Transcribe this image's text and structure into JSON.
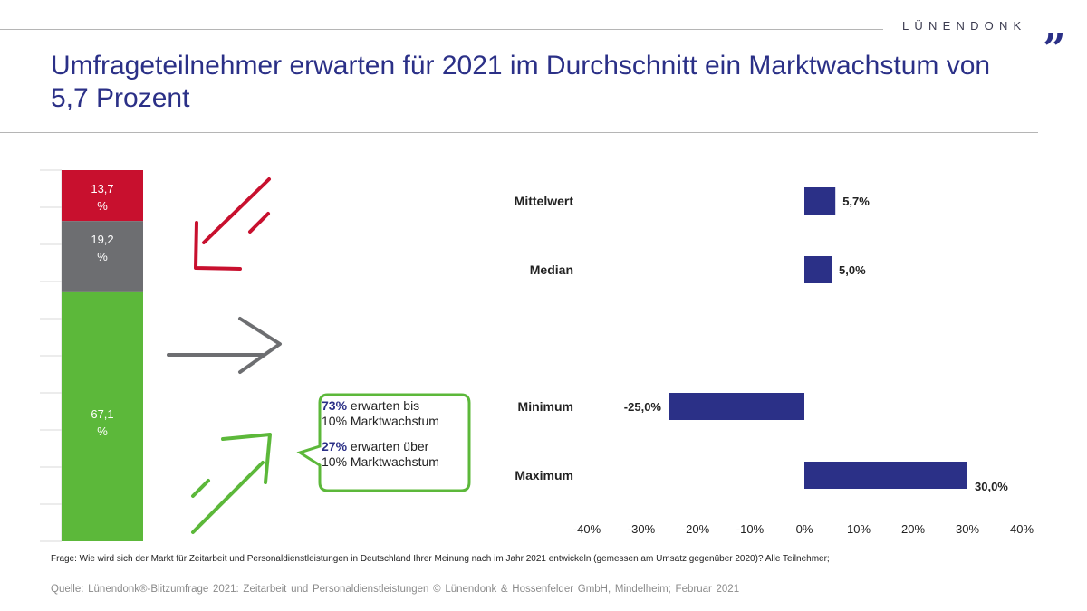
{
  "brand": {
    "name": "LÜNENDONK",
    "mark": "„"
  },
  "title": "Umfrageteilnehmer erwarten für 2021 im Durchschnitt ein Marktwachstum von 5,7 Prozent",
  "callout": {
    "line1_bold": "73%",
    "line1_rest": " erwarten bis",
    "line2": "10% Marktwachstum",
    "line3_bold": "27%",
    "line3_rest": " erwarten über",
    "line4": "10% Marktwachstum"
  },
  "colors": {
    "red": "#c8102e",
    "gray": "#6d6e71",
    "green": "#5cb83a",
    "navy": "#2b3087"
  },
  "chart_data": [
    {
      "type": "bar",
      "stacked": true,
      "segments": [
        {
          "value": 13.7,
          "label": "13,7\n%",
          "color": "#c8102e"
        },
        {
          "value": 19.2,
          "label": "19,2\n%",
          "color": "#6d6e71"
        },
        {
          "value": 67.1,
          "label": "67,1\n%",
          "color": "#5cb83a"
        }
      ]
    },
    {
      "type": "bar",
      "orientation": "horizontal",
      "categories": [
        "Mittelwert",
        "Median",
        "Minimum",
        "Maximum"
      ],
      "values": [
        5.7,
        5.0,
        -25.0,
        30.0
      ],
      "value_labels": [
        "5,7%",
        "5,0%",
        "-25,0%",
        "30,0%"
      ],
      "xlim": [
        -40,
        40
      ],
      "xticks": [
        "-40%",
        "-30%",
        "-20%",
        "-10%",
        "0%",
        "10%",
        "20%",
        "30%",
        "40%"
      ],
      "color": "#2b3087"
    }
  ],
  "footnote": "Frage: Wie wird sich der Markt für Zeitarbeit und Personaldienstleistungen in Deutschland Ihrer Meinung nach im Jahr 2021 entwickeln (gemessen am Umsatz gegenüber 2020)?  Alle Teilnehmer;",
  "source": "Quelle: Lünendonk®-Blitzumfrage 2021: Zeitarbeit und Personaldienstleistungen © Lünendonk & Hossenfelder GmbH, Mindelheim; Februar 2021"
}
